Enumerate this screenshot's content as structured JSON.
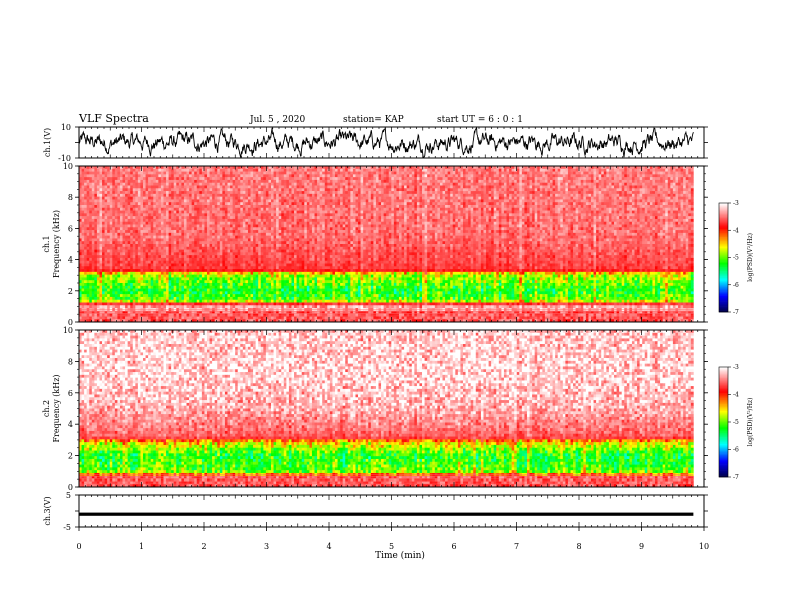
{
  "header": {
    "title": "VLF Spectra",
    "date": "Jul. 5 , 2020",
    "station": "station= KAP",
    "start": "start UT = 6 : 0 : 1"
  },
  "chart_data": [
    {
      "type": "line",
      "id": "ch1-waveform",
      "ylabel": "ch.1(V)",
      "ylim": [
        -10,
        10
      ],
      "ytick_labels": [
        "10",
        "-10"
      ],
      "xlim": [
        0,
        10
      ],
      "data_end": 9.83,
      "description_level": {
        "mean": 0,
        "amplitude": 4
      }
    },
    {
      "type": "heatmap",
      "id": "ch1-spectrogram",
      "ylabel_top": "ch.1",
      "ylabel": "Frequency (kHz)",
      "ylim": [
        0,
        10
      ],
      "yticks": [
        0,
        2,
        4,
        6,
        8,
        10
      ],
      "xlim": [
        0,
        10
      ],
      "data_end": 9.83,
      "profile": [
        {
          "f": 0.0,
          "lvl": 0.1
        },
        {
          "f": 1.0,
          "lvl": 0.15
        },
        {
          "f": 1.4,
          "lvl": 0.55
        },
        {
          "f": 2.0,
          "lvl": 0.6
        },
        {
          "f": 3.0,
          "lvl": 0.5
        },
        {
          "f": 3.4,
          "lvl": 0.3
        },
        {
          "f": 5.5,
          "lvl": 0.22
        },
        {
          "f": 10.0,
          "lvl": 0.2
        }
      ],
      "colorbar": {
        "ticks": [
          -3,
          -4,
          -5,
          -6,
          -7
        ],
        "tick_labels": [
          "-3",
          "-4",
          "-5",
          "-6",
          "-7"
        ],
        "label": "log(PSD)(V²/Hz)",
        "range": [
          -7,
          -3
        ],
        "colors": [
          "#000040",
          "#0000ff",
          "#00ffff",
          "#00ff00",
          "#ffff00",
          "#ff0000",
          "#ffffff"
        ]
      }
    },
    {
      "type": "heatmap",
      "id": "ch2-spectrogram",
      "ylabel_top": "ch.2",
      "ylabel": "Frequency (kHz)",
      "ylim": [
        0,
        10
      ],
      "yticks": [
        0,
        2,
        4,
        6,
        8,
        10
      ],
      "xlim": [
        0,
        10
      ],
      "data_end": 9.83,
      "profile": [
        {
          "f": 0.0,
          "lvl": 0.1
        },
        {
          "f": 0.6,
          "lvl": 0.2
        },
        {
          "f": 1.0,
          "lvl": 0.55
        },
        {
          "f": 2.0,
          "lvl": 0.6
        },
        {
          "f": 2.8,
          "lvl": 0.45
        },
        {
          "f": 3.2,
          "lvl": 0.25
        },
        {
          "f": 5.0,
          "lvl": 0.12
        },
        {
          "f": 7.0,
          "lvl": 0.06
        },
        {
          "f": 10.0,
          "lvl": 0.08
        }
      ],
      "colorbar": {
        "ticks": [
          -3,
          -4,
          -5,
          -6,
          -7
        ],
        "tick_labels": [
          "-3",
          "-4",
          "-5",
          "-6",
          "-7"
        ],
        "label": "log(PSD)(V²/Hz)",
        "range": [
          -7,
          -3
        ],
        "colors": [
          "#000040",
          "#0000ff",
          "#00ffff",
          "#00ff00",
          "#ffff00",
          "#ff0000",
          "#ffffff"
        ]
      }
    },
    {
      "type": "line",
      "id": "ch3-waveform",
      "ylabel": "ch.3(V)",
      "ylim": [
        -5,
        5
      ],
      "ytick_labels": [
        "5",
        "-5"
      ],
      "xlim": [
        0,
        10
      ],
      "data_end": 9.83,
      "description_level": {
        "mean": -1,
        "amplitude": 0.5
      }
    }
  ],
  "x_axis": {
    "label": "Time (min)",
    "ticks": [
      0,
      1,
      2,
      3,
      4,
      5,
      6,
      7,
      8,
      9,
      10
    ],
    "tick_labels": [
      "0",
      "1",
      "2",
      "3",
      "4",
      "5",
      "6",
      "7",
      "8",
      "9",
      "10"
    ]
  }
}
